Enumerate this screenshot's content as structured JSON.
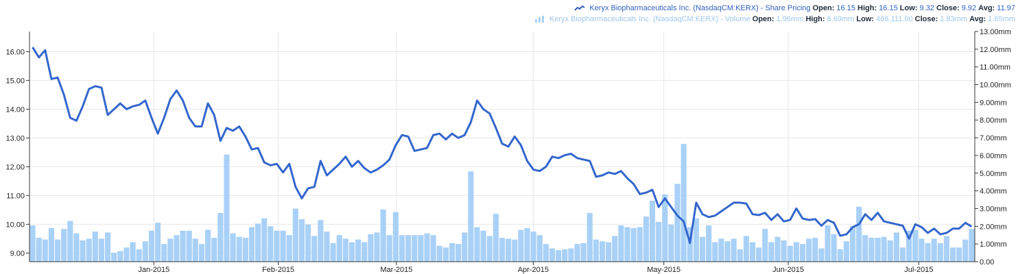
{
  "legend": {
    "price": {
      "series": "Keryx Biopharmaceuticals Inc. (NasdaqCM:KERX) - Share Pricing",
      "open_label": "Open:",
      "open": "16.15",
      "high_label": "High:",
      "high": "16.15",
      "low_label": "Low:",
      "low": "9.32",
      "close_label": "Close:",
      "close": "9.92",
      "avg_label": "Avg:",
      "avg": "11.97"
    },
    "volume": {
      "series": "Keryx Biopharmaceuticals Inc. (NasdaqCM:KERX) - Volume",
      "open_label": "Open:",
      "open": "1.96mm",
      "high_label": "High:",
      "high": "6.69mm",
      "low_label": "Low:",
      "low": "466,111.00",
      "close_label": "Close:",
      "close": "1.83mm",
      "avg_label": "Avg:",
      "avg": "1.65mm"
    }
  },
  "colors": {
    "price_line": "#3366cc",
    "volume_bar": "#a9d1f7",
    "grid": "#e6e6e6",
    "axis": "#333333"
  },
  "chart_data": {
    "type": "line",
    "grid": true,
    "legend_position": "top-right",
    "x_tick_labels": [
      "Jan-2015",
      "Feb-2015",
      "Mar-2015",
      "Apr-2015",
      "May-2015",
      "Jun-2015",
      "Jul-2015"
    ],
    "x_tick_sessions": [
      20,
      40,
      59,
      81,
      102,
      122,
      143
    ],
    "x_range": [
      0,
      152
    ],
    "left_axis": {
      "ticks": [
        "16.00",
        "15.00",
        "14.00",
        "13.00",
        "12.00",
        "11.00",
        "10.00",
        "9.00"
      ],
      "ylim": [
        8.7,
        16.7
      ]
    },
    "right_axis": {
      "ticks": [
        "13.00mm",
        "12.00mm",
        "11.00mm",
        "10.00mm",
        "9.00mm",
        "8.00mm",
        "7.00mm",
        "6.00mm",
        "5.00mm",
        "4.00mm",
        "3.00mm",
        "2.00mm",
        "1.00mm",
        "0.00"
      ],
      "ylim": [
        0,
        13.0
      ]
    },
    "series": [
      {
        "axis": "left",
        "kind": "line",
        "values": [
          16.15,
          15.8,
          16.05,
          15.05,
          15.1,
          14.5,
          13.7,
          13.6,
          14.1,
          14.7,
          14.8,
          14.75,
          13.8,
          14.0,
          14.2,
          14.0,
          14.1,
          14.15,
          14.3,
          13.7,
          13.15,
          13.7,
          14.35,
          14.65,
          14.3,
          13.7,
          13.4,
          13.4,
          14.2,
          13.8,
          12.9,
          13.35,
          13.25,
          13.4,
          13.05,
          12.6,
          12.65,
          12.15,
          12.05,
          12.1,
          11.8,
          12.1,
          11.3,
          10.9,
          11.25,
          11.3,
          12.2,
          11.7,
          11.9,
          12.1,
          12.35,
          12.0,
          12.2,
          11.95,
          11.8,
          11.9,
          12.05,
          12.25,
          12.75,
          13.1,
          13.05,
          12.55,
          12.6,
          12.65,
          13.1,
          13.15,
          12.95,
          13.15,
          13.0,
          13.1,
          13.55,
          14.3,
          14.0,
          13.85,
          13.35,
          12.8,
          12.7,
          13.05,
          12.75,
          12.2,
          11.9,
          11.85,
          12.0,
          12.35,
          12.3,
          12.4,
          12.45,
          12.3,
          12.25,
          12.2,
          11.65,
          11.7,
          11.8,
          11.75,
          11.85,
          11.6,
          11.4,
          11.05,
          11.1,
          11.2,
          10.6,
          10.9,
          10.6,
          10.3,
          10.1,
          9.35,
          10.75,
          10.35,
          10.25,
          10.3,
          10.45,
          10.6,
          10.75,
          10.75,
          10.72,
          10.35,
          10.32,
          10.4,
          10.15,
          10.35,
          10.1,
          10.15,
          10.55,
          10.2,
          10.15,
          10.18,
          9.95,
          10.15,
          10.05,
          9.6,
          9.65,
          9.9,
          10.0,
          10.35,
          10.15,
          10.4,
          10.1,
          10.05,
          10.0,
          9.95,
          9.5,
          10.0,
          9.9,
          9.7,
          9.85,
          9.65,
          9.7,
          9.85,
          9.85,
          10.05,
          9.92
        ]
      },
      {
        "axis": "right",
        "kind": "bar",
        "values": [
          2.05,
          1.35,
          1.25,
          1.9,
          1.25,
          1.85,
          2.3,
          1.6,
          1.2,
          1.3,
          1.7,
          1.3,
          1.65,
          0.5,
          0.6,
          0.8,
          1.1,
          0.7,
          1.15,
          1.75,
          2.2,
          1.0,
          1.3,
          1.5,
          1.75,
          1.75,
          1.3,
          1.0,
          1.8,
          1.35,
          2.75,
          6.05,
          1.6,
          1.4,
          1.35,
          1.95,
          2.15,
          2.45,
          2.0,
          1.75,
          1.75,
          1.5,
          3.0,
          2.4,
          2.1,
          1.45,
          2.35,
          1.7,
          1.05,
          1.5,
          1.3,
          1.1,
          1.25,
          1.1,
          1.55,
          1.65,
          2.95,
          1.5,
          2.8,
          1.5,
          1.5,
          1.5,
          1.5,
          1.6,
          1.5,
          0.9,
          0.8,
          1.05,
          1.0,
          1.65,
          5.1,
          1.95,
          1.75,
          1.45,
          2.7,
          1.35,
          1.3,
          1.25,
          1.8,
          1.9,
          1.7,
          1.5,
          1.0,
          0.75,
          0.65,
          0.7,
          0.75,
          1.0,
          1.05,
          2.75,
          1.25,
          1.15,
          1.1,
          1.45,
          2.05,
          1.95,
          1.9,
          1.95,
          2.55,
          3.45,
          2.25,
          3.8,
          2.1,
          4.4,
          6.65,
          1.95,
          2.45,
          1.4,
          2.05,
          1.1,
          1.3,
          1.15,
          1.3,
          0.7,
          1.45,
          1.1,
          0.8,
          1.85,
          1.1,
          1.4,
          1.2,
          0.9,
          1.1,
          1.0,
          1.3,
          1.35,
          0.75,
          2.05,
          1.55,
          0.7,
          1.15,
          2.0,
          3.1,
          1.5,
          1.35,
          1.35,
          1.4,
          1.2,
          1.65,
          0.8,
          1.75,
          1.8,
          1.3,
          1.05,
          1.3,
          1.05,
          1.45,
          0.8,
          0.8,
          1.25,
          1.85
        ]
      }
    ]
  }
}
